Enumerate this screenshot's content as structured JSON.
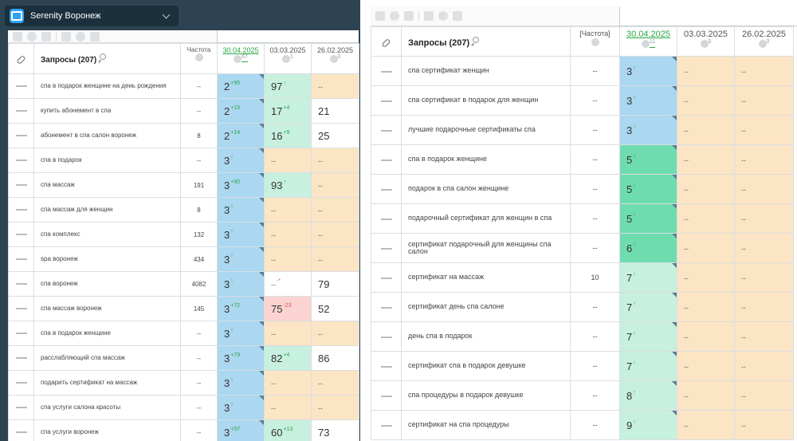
{
  "left": {
    "project": {
      "name": "Serenity Воронеж",
      "icon": "briefcase-icon"
    },
    "header": {
      "query_title": "Запросы (207)",
      "freq_label": "Частота",
      "dates": [
        {
          "label": "30.04.2025",
          "sup": "67"
        },
        {
          "label": "03.03.2025",
          "sup": "1"
        },
        {
          "label": "26.02.2025",
          "sup": "0"
        }
      ]
    },
    "rows": [
      {
        "query": "спа в подарок женщине на день рождения",
        "freq": "--",
        "pos": [
          {
            "v": "2",
            "d": "95",
            "dir": "up",
            "c": "blue"
          },
          {
            "v": "97",
            "d": "",
            "dir": "up",
            "c": "lgreen"
          },
          {
            "v": "--",
            "d": "",
            "dir": "",
            "c": "orange"
          }
        ]
      },
      {
        "query": "купить абонемент в спа",
        "freq": "--",
        "pos": [
          {
            "v": "2",
            "d": "15",
            "dir": "up",
            "c": "blue"
          },
          {
            "v": "17",
            "d": "4",
            "dir": "up",
            "c": "lgreen"
          },
          {
            "v": "21",
            "d": "",
            "dir": "",
            "c": "white"
          }
        ]
      },
      {
        "query": "абонемент в спа салон воронеж",
        "freq": "8",
        "pos": [
          {
            "v": "2",
            "d": "14",
            "dir": "up",
            "c": "blue"
          },
          {
            "v": "16",
            "d": "9",
            "dir": "up",
            "c": "lgreen"
          },
          {
            "v": "25",
            "d": "",
            "dir": "",
            "c": "white"
          }
        ]
      },
      {
        "query": "спа в подарок",
        "freq": "--",
        "pos": [
          {
            "v": "3",
            "d": "",
            "dir": "up",
            "c": "blue"
          },
          {
            "v": "--",
            "d": "",
            "dir": "",
            "c": "orange"
          },
          {
            "v": "--",
            "d": "",
            "dir": "",
            "c": "orange"
          }
        ]
      },
      {
        "query": "спа массаж",
        "freq": "191",
        "pos": [
          {
            "v": "3",
            "d": "90",
            "dir": "up",
            "c": "blue"
          },
          {
            "v": "93",
            "d": "",
            "dir": "up",
            "c": "lgreen"
          },
          {
            "v": "--",
            "d": "",
            "dir": "",
            "c": "orange"
          }
        ]
      },
      {
        "query": "спа массаж для женщин",
        "freq": "8",
        "pos": [
          {
            "v": "3",
            "d": "",
            "dir": "up",
            "c": "blue"
          },
          {
            "v": "--",
            "d": "",
            "dir": "",
            "c": "orange"
          },
          {
            "v": "--",
            "d": "",
            "dir": "",
            "c": "orange"
          }
        ]
      },
      {
        "query": "спа комплекс",
        "freq": "132",
        "pos": [
          {
            "v": "3",
            "d": "",
            "dir": "up",
            "c": "blue"
          },
          {
            "v": "--",
            "d": "",
            "dir": "",
            "c": "orange"
          },
          {
            "v": "--",
            "d": "",
            "dir": "",
            "c": "orange"
          }
        ]
      },
      {
        "query": "spa воронеж",
        "freq": "434",
        "pos": [
          {
            "v": "3",
            "d": "",
            "dir": "up",
            "c": "blue"
          },
          {
            "v": "--",
            "d": "",
            "dir": "",
            "c": "orange"
          },
          {
            "v": "--",
            "d": "",
            "dir": "",
            "c": "orange"
          }
        ]
      },
      {
        "query": "спа воронеж",
        "freq": "4082",
        "pos": [
          {
            "v": "3",
            "d": "",
            "dir": "up",
            "c": "blue"
          },
          {
            "v": "--",
            "d": "*",
            "dir": "down",
            "c": "white"
          },
          {
            "v": "79",
            "d": "",
            "dir": "",
            "c": "white"
          }
        ]
      },
      {
        "query": "спа массаж воронеж",
        "freq": "145",
        "pos": [
          {
            "v": "3",
            "d": "72",
            "dir": "up",
            "c": "blue"
          },
          {
            "v": "75",
            "d": "23",
            "dir": "down",
            "c": "red"
          },
          {
            "v": "52",
            "d": "",
            "dir": "",
            "c": "white"
          }
        ]
      },
      {
        "query": "спа в подарок женщине",
        "freq": "--",
        "pos": [
          {
            "v": "3",
            "d": "",
            "dir": "up",
            "c": "blue"
          },
          {
            "v": "--",
            "d": "",
            "dir": "",
            "c": "orange"
          },
          {
            "v": "--",
            "d": "",
            "dir": "",
            "c": "orange"
          }
        ]
      },
      {
        "query": "расслабляющий спа массаж",
        "freq": "--",
        "pos": [
          {
            "v": "3",
            "d": "79",
            "dir": "up",
            "c": "blue"
          },
          {
            "v": "82",
            "d": "4",
            "dir": "up",
            "c": "lgreen"
          },
          {
            "v": "86",
            "d": "",
            "dir": "",
            "c": "white"
          }
        ]
      },
      {
        "query": "подарить сертификат на массаж",
        "freq": "--",
        "pos": [
          {
            "v": "3",
            "d": "",
            "dir": "up",
            "c": "blue"
          },
          {
            "v": "--",
            "d": "",
            "dir": "",
            "c": "orange"
          },
          {
            "v": "--",
            "d": "",
            "dir": "",
            "c": "orange"
          }
        ]
      },
      {
        "query": "спа услуги салона красоты",
        "freq": "--",
        "pos": [
          {
            "v": "3",
            "d": "",
            "dir": "up",
            "c": "blue"
          },
          {
            "v": "--",
            "d": "",
            "dir": "",
            "c": "orange"
          },
          {
            "v": "--",
            "d": "",
            "dir": "",
            "c": "orange"
          }
        ]
      },
      {
        "query": "спа услуги воронеж",
        "freq": "--",
        "pos": [
          {
            "v": "3",
            "d": "57",
            "dir": "up",
            "c": "blue"
          },
          {
            "v": "60",
            "d": "13",
            "dir": "up",
            "c": "lgreen"
          },
          {
            "v": "73",
            "d": "",
            "dir": "",
            "c": "white"
          }
        ]
      }
    ]
  },
  "right": {
    "header": {
      "query_title": "Запросы (207)",
      "freq_label": "[Частота]",
      "dates": [
        {
          "label": "30.04.2025",
          "sup": "11"
        },
        {
          "label": "03.03.2025",
          "sup": "0"
        },
        {
          "label": "26.02.2025",
          "sup": "0"
        }
      ]
    },
    "rows": [
      {
        "query": "спа сертификат женщин",
        "freq": "--",
        "pos": [
          {
            "v": "3",
            "d": "",
            "dir": "up",
            "c": "blue"
          },
          {
            "v": "--",
            "d": "",
            "dir": "",
            "c": "orange"
          },
          {
            "v": "--",
            "d": "",
            "dir": "",
            "c": "orange"
          }
        ]
      },
      {
        "query": "спа сертификат в подарок для женщин",
        "freq": "--",
        "pos": [
          {
            "v": "3",
            "d": "",
            "dir": "up",
            "c": "blue"
          },
          {
            "v": "--",
            "d": "",
            "dir": "",
            "c": "orange"
          },
          {
            "v": "--",
            "d": "",
            "dir": "",
            "c": "orange"
          }
        ]
      },
      {
        "query": "лучшие подарочные сертификаты спа",
        "freq": "--",
        "pos": [
          {
            "v": "3",
            "d": "",
            "dir": "up",
            "c": "blue"
          },
          {
            "v": "--",
            "d": "",
            "dir": "",
            "c": "orange"
          },
          {
            "v": "--",
            "d": "",
            "dir": "",
            "c": "orange"
          }
        ]
      },
      {
        "query": "спа в подарок женщине",
        "freq": "--",
        "pos": [
          {
            "v": "5",
            "d": "",
            "dir": "up",
            "c": "green"
          },
          {
            "v": "--",
            "d": "",
            "dir": "",
            "c": "orange"
          },
          {
            "v": "--",
            "d": "",
            "dir": "",
            "c": "orange"
          }
        ]
      },
      {
        "query": "подарок в спа салон женщине",
        "freq": "--",
        "pos": [
          {
            "v": "5",
            "d": "",
            "dir": "up",
            "c": "green"
          },
          {
            "v": "--",
            "d": "",
            "dir": "",
            "c": "orange"
          },
          {
            "v": "--",
            "d": "",
            "dir": "",
            "c": "orange"
          }
        ]
      },
      {
        "query": "подарочный сертификат для женщин в спа",
        "freq": "--",
        "pos": [
          {
            "v": "5",
            "d": "",
            "dir": "up",
            "c": "green"
          },
          {
            "v": "--",
            "d": "",
            "dir": "",
            "c": "orange"
          },
          {
            "v": "--",
            "d": "",
            "dir": "",
            "c": "orange"
          }
        ]
      },
      {
        "query": "сертификат подарочный для женщины спа салон",
        "freq": "--",
        "pos": [
          {
            "v": "6",
            "d": "",
            "dir": "up",
            "c": "green"
          },
          {
            "v": "--",
            "d": "",
            "dir": "",
            "c": "orange"
          },
          {
            "v": "--",
            "d": "",
            "dir": "",
            "c": "orange"
          }
        ]
      },
      {
        "query": "сертификат на массаж",
        "freq": "10",
        "pos": [
          {
            "v": "7",
            "d": "",
            "dir": "up",
            "c": "lgreen"
          },
          {
            "v": "--",
            "d": "",
            "dir": "",
            "c": "orange"
          },
          {
            "v": "--",
            "d": "",
            "dir": "",
            "c": "orange"
          }
        ]
      },
      {
        "query": "сертификат день спа салоне",
        "freq": "--",
        "pos": [
          {
            "v": "7",
            "d": "",
            "dir": "up",
            "c": "lgreen"
          },
          {
            "v": "--",
            "d": "",
            "dir": "",
            "c": "orange"
          },
          {
            "v": "--",
            "d": "",
            "dir": "",
            "c": "orange"
          }
        ]
      },
      {
        "query": "день спа в подарок",
        "freq": "--",
        "pos": [
          {
            "v": "7",
            "d": "",
            "dir": "up",
            "c": "lgreen"
          },
          {
            "v": "--",
            "d": "",
            "dir": "",
            "c": "orange"
          },
          {
            "v": "--",
            "d": "",
            "dir": "",
            "c": "orange"
          }
        ]
      },
      {
        "query": "сертификат спа в подарок девушке",
        "freq": "--",
        "pos": [
          {
            "v": "7",
            "d": "",
            "dir": "up",
            "c": "lgreen"
          },
          {
            "v": "--",
            "d": "",
            "dir": "",
            "c": "orange"
          },
          {
            "v": "--",
            "d": "",
            "dir": "",
            "c": "orange"
          }
        ]
      },
      {
        "query": "спа процедуры в подарок девушке",
        "freq": "--",
        "pos": [
          {
            "v": "8",
            "d": "",
            "dir": "up",
            "c": "lgreen"
          },
          {
            "v": "--",
            "d": "",
            "dir": "",
            "c": "orange"
          },
          {
            "v": "--",
            "d": "",
            "dir": "",
            "c": "orange"
          }
        ]
      },
      {
        "query": "сертификат на спа процедуры",
        "freq": "--",
        "pos": [
          {
            "v": "9",
            "d": "",
            "dir": "up",
            "c": "lgreen"
          },
          {
            "v": "--",
            "d": "",
            "dir": "",
            "c": "orange"
          },
          {
            "v": "--",
            "d": "",
            "dir": "",
            "c": "orange"
          }
        ]
      }
    ]
  },
  "colors": {
    "header_bg": "#2e4352",
    "pill_bg": "#1b2f3d",
    "blue": "#abd7f0",
    "green": "#6fdcb0",
    "lgreen": "#c8f0df",
    "orange": "#fbe5c4",
    "red": "#fbd3d1",
    "positive": "#2aa84a",
    "negative": "#e0554e"
  },
  "icons": [
    "briefcase-icon",
    "chevron-down-icon",
    "sort-icon",
    "eye-icon",
    "link-icon",
    "search-icon",
    "globe-icon"
  ]
}
